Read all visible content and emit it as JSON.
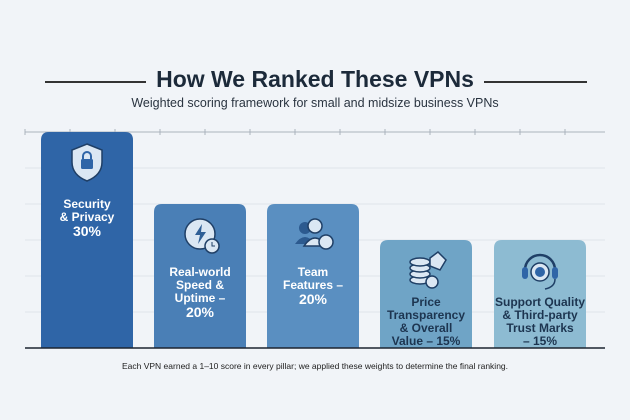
{
  "title": "How We Ranked These VPNs",
  "subtitle": "Weighted scoring framework for small and midsize business VPNs",
  "footnote": "Each VPN earned a 1–10 score in every pillar; we applied these weights to determine the final ranking.",
  "chart_data": {
    "type": "bar",
    "categories": [
      "Security & Privacy",
      "Real-world Speed & Uptime",
      "Team Features",
      "Price Transparency & Overall Value",
      "Support Quality & Third-party Trust Marks"
    ],
    "values": [
      30,
      20,
      20,
      15,
      15
    ],
    "unit": "%",
    "ylim": [
      0,
      30
    ],
    "grid": true,
    "labels": [
      {
        "lines": [
          "Security",
          "& Privacy"
        ],
        "pct": "30%"
      },
      {
        "lines": [
          "Real-world",
          "Speed &",
          "Uptime –"
        ],
        "pct": "20%"
      },
      {
        "lines": [
          "Team",
          "Features –"
        ],
        "pct": "20%"
      },
      {
        "lines": [
          "Price",
          "Transparency",
          "& Overall"
        ],
        "pct": "Value – 15%"
      },
      {
        "lines": [
          "Support Quality",
          "& Third-party",
          "Trust Marks"
        ],
        "pct": "– 15%"
      }
    ],
    "icons": [
      "shield-lock-icon",
      "speedometer-clock-icon",
      "team-gear-icon",
      "coins-price-tag-icon",
      "headset-support-icon"
    ],
    "colors": [
      "#2f65a7",
      "#4a7fb6",
      "#5a8fc1",
      "#6fa4c6",
      "#8dbbd2"
    ]
  }
}
